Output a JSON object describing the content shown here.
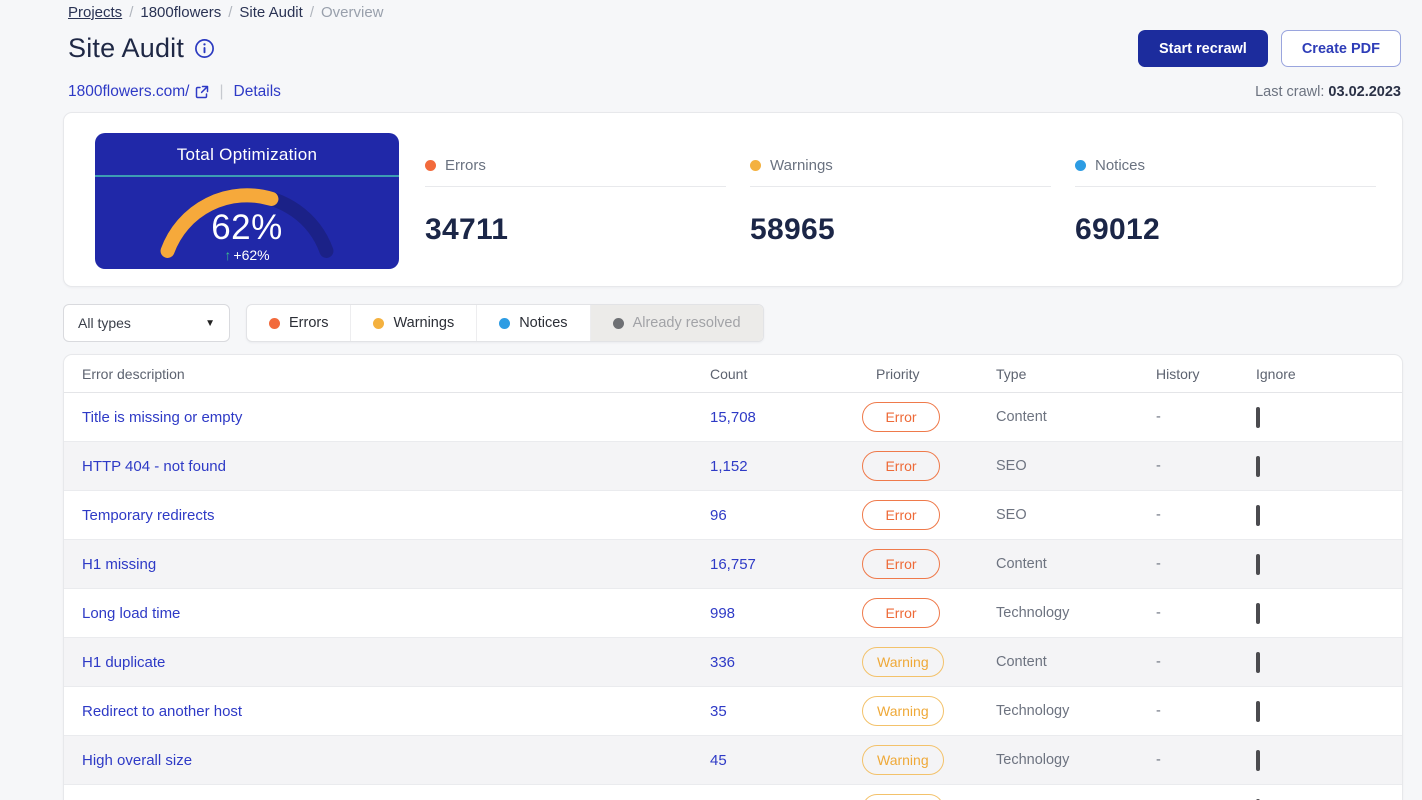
{
  "breadcrumb": {
    "items": [
      "Projects",
      "1800flowers",
      "Site Audit",
      "Overview"
    ],
    "separator": "/"
  },
  "header": {
    "title": "Site Audit",
    "start_recrawl_label": "Start recrawl",
    "create_pdf_label": "Create PDF"
  },
  "site": {
    "url": "1800flowers.com/",
    "details_label": "Details",
    "last_crawl_label": "Last crawl:",
    "last_crawl_date": "03.02.2023"
  },
  "overview": {
    "gauge": {
      "title": "Total Optimization",
      "percent_label": "62%",
      "delta_label": "+62%",
      "delta_arrow": "↑",
      "value": 62,
      "max": 100
    },
    "stats": [
      {
        "label": "Errors",
        "value": "34711",
        "color": "#f26a3c"
      },
      {
        "label": "Warnings",
        "value": "58965",
        "color": "#f4b13f"
      },
      {
        "label": "Notices",
        "value": "69012",
        "color": "#2d9ce3"
      }
    ]
  },
  "filters": {
    "type_select_value": "All types",
    "tabs": [
      {
        "label": "Errors",
        "color": "#f26a3c",
        "style": "normal"
      },
      {
        "label": "Warnings",
        "color": "#f4b13f",
        "style": "normal"
      },
      {
        "label": "Notices",
        "color": "#2d9ce3",
        "style": "normal"
      },
      {
        "label": "Already resolved",
        "color": "#6e7074",
        "style": "muted"
      }
    ]
  },
  "table": {
    "columns": [
      "Error description",
      "Count",
      "Priority",
      "Type",
      "History",
      "Ignore"
    ],
    "rows": [
      {
        "description": "Title is missing or empty",
        "count": "15,708",
        "priority": "Error",
        "type": "Content",
        "history": "-"
      },
      {
        "description": "HTTP 404 - not found",
        "count": "1,152",
        "priority": "Error",
        "type": "SEO",
        "history": "-"
      },
      {
        "description": "Temporary redirects",
        "count": "96",
        "priority": "Error",
        "type": "SEO",
        "history": "-"
      },
      {
        "description": "H1 missing",
        "count": "16,757",
        "priority": "Error",
        "type": "Content",
        "history": "-"
      },
      {
        "description": "Long load time",
        "count": "998",
        "priority": "Error",
        "type": "Technology",
        "history": "-"
      },
      {
        "description": "H1 duplicate",
        "count": "336",
        "priority": "Warning",
        "type": "Content",
        "history": "-"
      },
      {
        "description": "Redirect to another host",
        "count": "35",
        "priority": "Warning",
        "type": "Technology",
        "history": "-"
      },
      {
        "description": "High overall size",
        "count": "45",
        "priority": "Warning",
        "type": "Technology",
        "history": "-"
      },
      {
        "description": "",
        "count": "",
        "priority": "Warning",
        "type": "",
        "history": ""
      }
    ]
  },
  "colors": {
    "brand_button_blue": "#1c2c9d",
    "gauge_card_blue": "#2028a8",
    "gauge_track_blue": "#1b2187",
    "gauge_arc_orange": "#f6a93b",
    "gauge_divider_teal": "#3d9db3",
    "delta_green": "#3cb98c",
    "link_blue": "#2e3ac6",
    "error_orange": "#f26a3c",
    "warning_yellow": "#f4b13f",
    "notice_blue": "#2d9ce3"
  }
}
